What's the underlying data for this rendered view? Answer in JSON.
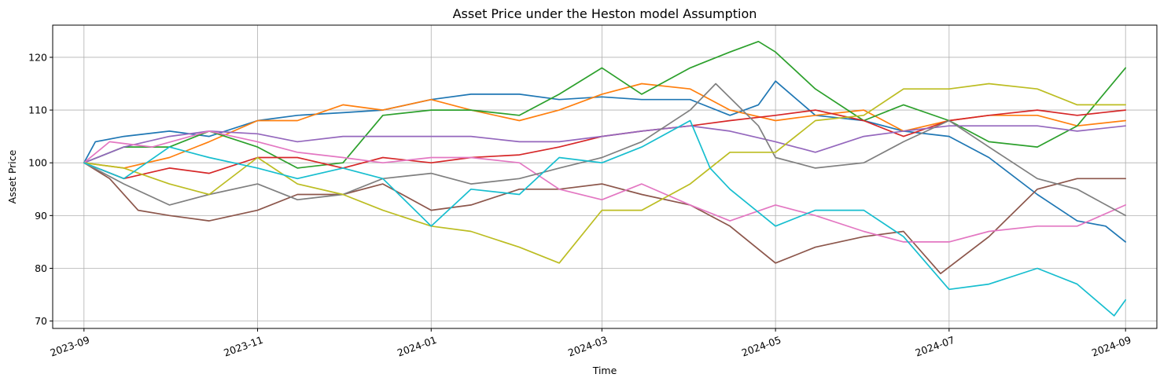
{
  "chart_data": {
    "type": "line",
    "title": "Asset Price under the Heston model Assumption",
    "xlabel": "Time",
    "ylabel": "Asset Price",
    "x_range": [
      "2023-08-21",
      "2024-09-12"
    ],
    "x_ticks": [
      "2023-09",
      "2023-11",
      "2024-01",
      "2024-03",
      "2024-05",
      "2024-07",
      "2024-09"
    ],
    "ylim": [
      68.6,
      126.1
    ],
    "y_ticks": [
      70,
      80,
      90,
      100,
      110,
      120
    ],
    "grid": true,
    "x_tick_rotation": 20,
    "series": [
      {
        "color": "#1f77b4",
        "points": [
          [
            "2023-09-01",
            100
          ],
          [
            "2023-09-05",
            104
          ],
          [
            "2023-09-15",
            105
          ],
          [
            "2023-10-01",
            106
          ],
          [
            "2023-10-15",
            105
          ],
          [
            "2023-11-01",
            108
          ],
          [
            "2023-11-15",
            109
          ],
          [
            "2023-12-01",
            109.5
          ],
          [
            "2023-12-15",
            110
          ],
          [
            "2024-01-01",
            112
          ],
          [
            "2024-01-15",
            113
          ],
          [
            "2024-02-01",
            113
          ],
          [
            "2024-02-15",
            112
          ],
          [
            "2024-03-01",
            112.5
          ],
          [
            "2024-03-15",
            112
          ],
          [
            "2024-04-01",
            112
          ],
          [
            "2024-04-15",
            109
          ],
          [
            "2024-04-25",
            111
          ],
          [
            "2024-05-01",
            115.5
          ],
          [
            "2024-05-15",
            109
          ],
          [
            "2024-06-01",
            108
          ],
          [
            "2024-06-15",
            106
          ],
          [
            "2024-07-01",
            105
          ],
          [
            "2024-07-15",
            101
          ],
          [
            "2024-08-01",
            94
          ],
          [
            "2024-08-15",
            89
          ],
          [
            "2024-08-25",
            88
          ],
          [
            "2024-09-01",
            85
          ]
        ]
      },
      {
        "color": "#ff7f0e",
        "points": [
          [
            "2023-09-01",
            100
          ],
          [
            "2023-09-15",
            99
          ],
          [
            "2023-10-01",
            101
          ],
          [
            "2023-10-15",
            104
          ],
          [
            "2023-11-01",
            108
          ],
          [
            "2023-11-15",
            108
          ],
          [
            "2023-12-01",
            111
          ],
          [
            "2023-12-15",
            110
          ],
          [
            "2024-01-01",
            112
          ],
          [
            "2024-01-15",
            110
          ],
          [
            "2024-02-01",
            108
          ],
          [
            "2024-02-15",
            110
          ],
          [
            "2024-03-01",
            113
          ],
          [
            "2024-03-15",
            115
          ],
          [
            "2024-04-01",
            114
          ],
          [
            "2024-04-15",
            110
          ],
          [
            "2024-05-01",
            108
          ],
          [
            "2024-05-15",
            109
          ],
          [
            "2024-06-01",
            110
          ],
          [
            "2024-06-15",
            106
          ],
          [
            "2024-07-01",
            108
          ],
          [
            "2024-07-15",
            109
          ],
          [
            "2024-08-01",
            109
          ],
          [
            "2024-08-15",
            107
          ],
          [
            "2024-09-01",
            108
          ]
        ]
      },
      {
        "color": "#2ca02c",
        "points": [
          [
            "2023-09-01",
            100
          ],
          [
            "2023-09-15",
            103
          ],
          [
            "2023-10-01",
            103
          ],
          [
            "2023-10-15",
            106
          ],
          [
            "2023-11-01",
            103
          ],
          [
            "2023-11-15",
            99
          ],
          [
            "2023-12-01",
            100
          ],
          [
            "2023-12-15",
            109
          ],
          [
            "2024-01-01",
            110
          ],
          [
            "2024-01-15",
            110
          ],
          [
            "2024-02-01",
            109
          ],
          [
            "2024-02-15",
            113
          ],
          [
            "2024-03-01",
            118
          ],
          [
            "2024-03-15",
            113
          ],
          [
            "2024-04-01",
            118
          ],
          [
            "2024-04-15",
            121
          ],
          [
            "2024-04-25",
            123
          ],
          [
            "2024-05-01",
            121
          ],
          [
            "2024-05-15",
            114
          ],
          [
            "2024-06-01",
            108
          ],
          [
            "2024-06-15",
            111
          ],
          [
            "2024-07-01",
            108
          ],
          [
            "2024-07-15",
            104
          ],
          [
            "2024-08-01",
            103
          ],
          [
            "2024-08-15",
            107
          ],
          [
            "2024-09-01",
            118
          ]
        ]
      },
      {
        "color": "#d62728",
        "points": [
          [
            "2023-09-01",
            100
          ],
          [
            "2023-09-15",
            97
          ],
          [
            "2023-10-01",
            99
          ],
          [
            "2023-10-15",
            98
          ],
          [
            "2023-11-01",
            101
          ],
          [
            "2023-11-15",
            101
          ],
          [
            "2023-12-01",
            99
          ],
          [
            "2023-12-15",
            101
          ],
          [
            "2024-01-01",
            100
          ],
          [
            "2024-01-15",
            101
          ],
          [
            "2024-02-01",
            101.5
          ],
          [
            "2024-02-15",
            103
          ],
          [
            "2024-03-01",
            105
          ],
          [
            "2024-03-15",
            106
          ],
          [
            "2024-04-01",
            107
          ],
          [
            "2024-04-15",
            108
          ],
          [
            "2024-05-01",
            109
          ],
          [
            "2024-05-15",
            110
          ],
          [
            "2024-06-01",
            108
          ],
          [
            "2024-06-15",
            105
          ],
          [
            "2024-07-01",
            108
          ],
          [
            "2024-07-15",
            109
          ],
          [
            "2024-08-01",
            110
          ],
          [
            "2024-08-15",
            109
          ],
          [
            "2024-09-01",
            110
          ]
        ]
      },
      {
        "color": "#9467bd",
        "points": [
          [
            "2023-09-01",
            100
          ],
          [
            "2023-09-15",
            103
          ],
          [
            "2023-10-01",
            105
          ],
          [
            "2023-10-15",
            106
          ],
          [
            "2023-11-01",
            105.5
          ],
          [
            "2023-11-15",
            104
          ],
          [
            "2023-12-01",
            105
          ],
          [
            "2023-12-15",
            105
          ],
          [
            "2024-01-01",
            105
          ],
          [
            "2024-01-15",
            105
          ],
          [
            "2024-02-01",
            104
          ],
          [
            "2024-02-15",
            104
          ],
          [
            "2024-03-01",
            105
          ],
          [
            "2024-03-15",
            106
          ],
          [
            "2024-04-01",
            107
          ],
          [
            "2024-04-15",
            106
          ],
          [
            "2024-05-01",
            104
          ],
          [
            "2024-05-15",
            102
          ],
          [
            "2024-06-01",
            105
          ],
          [
            "2024-06-15",
            106
          ],
          [
            "2024-07-01",
            107
          ],
          [
            "2024-07-15",
            107
          ],
          [
            "2024-08-01",
            107
          ],
          [
            "2024-08-15",
            106
          ],
          [
            "2024-09-01",
            107
          ]
        ]
      },
      {
        "color": "#8c564b",
        "points": [
          [
            "2023-09-01",
            100
          ],
          [
            "2023-09-10",
            97
          ],
          [
            "2023-09-20",
            91
          ],
          [
            "2023-10-01",
            90
          ],
          [
            "2023-10-15",
            89
          ],
          [
            "2023-11-01",
            91
          ],
          [
            "2023-11-15",
            94
          ],
          [
            "2023-12-01",
            94
          ],
          [
            "2023-12-15",
            96
          ],
          [
            "2024-01-01",
            91
          ],
          [
            "2024-01-15",
            92
          ],
          [
            "2024-02-01",
            95
          ],
          [
            "2024-02-15",
            95
          ],
          [
            "2024-03-01",
            96
          ],
          [
            "2024-03-15",
            94
          ],
          [
            "2024-04-01",
            92
          ],
          [
            "2024-04-15",
            88
          ],
          [
            "2024-05-01",
            81
          ],
          [
            "2024-05-15",
            84
          ],
          [
            "2024-06-01",
            86
          ],
          [
            "2024-06-15",
            87
          ],
          [
            "2024-06-28",
            79
          ],
          [
            "2024-07-15",
            86
          ],
          [
            "2024-08-01",
            95
          ],
          [
            "2024-08-15",
            97
          ],
          [
            "2024-09-01",
            97
          ]
        ]
      },
      {
        "color": "#e377c2",
        "points": [
          [
            "2023-09-01",
            100
          ],
          [
            "2023-09-10",
            104
          ],
          [
            "2023-09-25",
            103
          ],
          [
            "2023-10-15",
            106
          ],
          [
            "2023-11-01",
            104
          ],
          [
            "2023-11-15",
            102
          ],
          [
            "2023-12-01",
            101
          ],
          [
            "2023-12-15",
            100
          ],
          [
            "2024-01-01",
            101
          ],
          [
            "2024-01-15",
            101
          ],
          [
            "2024-02-01",
            100
          ],
          [
            "2024-02-15",
            95
          ],
          [
            "2024-03-01",
            93
          ],
          [
            "2024-03-15",
            96
          ],
          [
            "2024-04-01",
            92
          ],
          [
            "2024-04-15",
            89
          ],
          [
            "2024-05-01",
            92
          ],
          [
            "2024-05-15",
            90
          ],
          [
            "2024-06-01",
            87
          ],
          [
            "2024-06-15",
            85
          ],
          [
            "2024-07-01",
            85
          ],
          [
            "2024-07-15",
            87
          ],
          [
            "2024-08-01",
            88
          ],
          [
            "2024-08-15",
            88
          ],
          [
            "2024-09-01",
            92
          ]
        ]
      },
      {
        "color": "#7f7f7f",
        "points": [
          [
            "2023-09-01",
            100
          ],
          [
            "2023-09-15",
            96
          ],
          [
            "2023-10-01",
            92
          ],
          [
            "2023-10-15",
            94
          ],
          [
            "2023-11-01",
            96
          ],
          [
            "2023-11-15",
            93
          ],
          [
            "2023-12-01",
            94
          ],
          [
            "2023-12-15",
            97
          ],
          [
            "2024-01-01",
            98
          ],
          [
            "2024-01-15",
            96
          ],
          [
            "2024-02-01",
            97
          ],
          [
            "2024-02-15",
            99
          ],
          [
            "2024-03-01",
            101
          ],
          [
            "2024-03-15",
            104
          ],
          [
            "2024-04-01",
            110
          ],
          [
            "2024-04-10",
            115
          ],
          [
            "2024-04-25",
            107
          ],
          [
            "2024-05-01",
            101
          ],
          [
            "2024-05-15",
            99
          ],
          [
            "2024-06-01",
            100
          ],
          [
            "2024-06-15",
            104
          ],
          [
            "2024-07-01",
            108
          ],
          [
            "2024-07-15",
            103
          ],
          [
            "2024-08-01",
            97
          ],
          [
            "2024-08-15",
            95
          ],
          [
            "2024-09-01",
            90
          ]
        ]
      },
      {
        "color": "#bcbd22",
        "points": [
          [
            "2023-09-01",
            100
          ],
          [
            "2023-09-15",
            99
          ],
          [
            "2023-10-01",
            96
          ],
          [
            "2023-10-15",
            94
          ],
          [
            "2023-11-01",
            101
          ],
          [
            "2023-11-15",
            96
          ],
          [
            "2023-12-01",
            94
          ],
          [
            "2023-12-15",
            91
          ],
          [
            "2024-01-01",
            88
          ],
          [
            "2024-01-15",
            87
          ],
          [
            "2024-02-01",
            84
          ],
          [
            "2024-02-15",
            81
          ],
          [
            "2024-03-01",
            91
          ],
          [
            "2024-03-15",
            91
          ],
          [
            "2024-04-01",
            96
          ],
          [
            "2024-04-15",
            102
          ],
          [
            "2024-05-01",
            102
          ],
          [
            "2024-05-15",
            108
          ],
          [
            "2024-06-01",
            109
          ],
          [
            "2024-06-15",
            114
          ],
          [
            "2024-07-01",
            114
          ],
          [
            "2024-07-15",
            115
          ],
          [
            "2024-08-01",
            114
          ],
          [
            "2024-08-15",
            111
          ],
          [
            "2024-09-01",
            111
          ]
        ]
      },
      {
        "color": "#17becf",
        "points": [
          [
            "2023-09-01",
            100
          ],
          [
            "2023-09-15",
            97
          ],
          [
            "2023-10-01",
            103
          ],
          [
            "2023-10-15",
            101
          ],
          [
            "2023-11-01",
            99
          ],
          [
            "2023-11-15",
            97
          ],
          [
            "2023-12-01",
            99
          ],
          [
            "2023-12-15",
            97
          ],
          [
            "2024-01-01",
            88
          ],
          [
            "2024-01-15",
            95
          ],
          [
            "2024-02-01",
            94
          ],
          [
            "2024-02-15",
            101
          ],
          [
            "2024-03-01",
            100
          ],
          [
            "2024-03-15",
            103
          ],
          [
            "2024-04-01",
            108
          ],
          [
            "2024-04-08",
            99
          ],
          [
            "2024-04-15",
            95
          ],
          [
            "2024-05-01",
            88
          ],
          [
            "2024-05-15",
            91
          ],
          [
            "2024-06-01",
            91
          ],
          [
            "2024-06-15",
            86
          ],
          [
            "2024-07-01",
            76
          ],
          [
            "2024-07-15",
            77
          ],
          [
            "2024-08-01",
            80
          ],
          [
            "2024-08-15",
            77
          ],
          [
            "2024-08-28",
            71
          ],
          [
            "2024-09-01",
            74
          ]
        ]
      }
    ]
  }
}
